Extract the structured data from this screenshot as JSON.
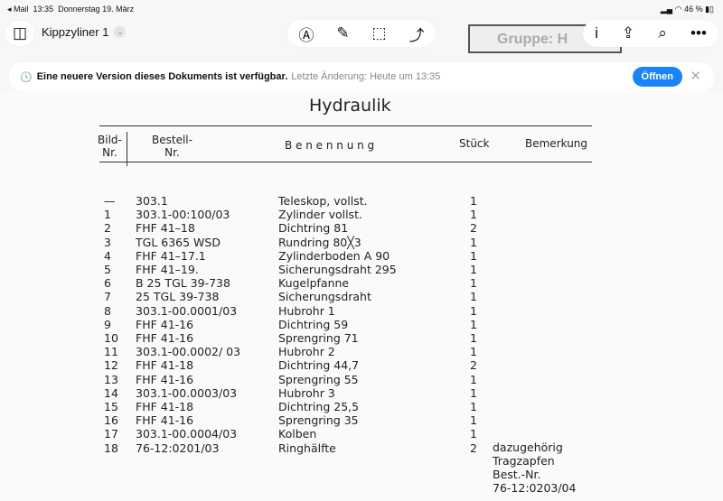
{
  "status": {
    "back": "◂ Mail",
    "time": "13:35",
    "date": "Donnerstag 19. März",
    "battery": "46 %"
  },
  "toolbar": {
    "doc_title": "Kippzyliner 1",
    "stamp": "Gruppe: H"
  },
  "banner": {
    "message": "Eine neuere Version dieses Dokuments ist verfügbar.",
    "detail": "Letzte Änderung: Heute um 13:35",
    "open_label": "Öffnen"
  },
  "document": {
    "title": "Hydraulik",
    "headers": {
      "bild": "Bild-\nNr.",
      "bestell": "Bestell-\nNr.",
      "benennung": "B e n e n n u n g",
      "stueck": "Stück",
      "bemerkung": "Bemerkung"
    },
    "rows": [
      {
        "nr": "—",
        "bestell": "303.1",
        "name": "Teleskop, vollst.",
        "qty": "1"
      },
      {
        "nr": "1",
        "bestell": "303.1-00:100/03",
        "name": "Zylinder vollst.",
        "qty": "1"
      },
      {
        "nr": "2",
        "bestell": "FHF 41–18",
        "name": "Dichtring 81",
        "qty": "2"
      },
      {
        "nr": "3",
        "bestell": "TGL 6365 WSD",
        "name": "Rundring 80╳3",
        "qty": "1"
      },
      {
        "nr": "4",
        "bestell": "FHF 41–17.1",
        "name": "Zylinderboden A 90",
        "qty": "1"
      },
      {
        "nr": "5",
        "bestell": "FHF 41–19.",
        "name": "Sicherungsdraht 295",
        "qty": "1"
      },
      {
        "nr": "6",
        "bestell": "B 25 TGL 39-738",
        "name": "Kugelpfanne",
        "qty": "1"
      },
      {
        "nr": "7",
        "bestell": "25 TGL 39-738",
        "name": "Sicherungsdraht",
        "qty": "1"
      },
      {
        "nr": "8",
        "bestell": "303.1-00.0001/03",
        "name": "Hubrohr 1",
        "qty": "1"
      },
      {
        "nr": "9",
        "bestell": "FHF 41-16",
        "name": "Dichtring 59",
        "qty": "1"
      },
      {
        "nr": "10",
        "bestell": "FHF 41-16",
        "name": "Sprengring 71",
        "qty": "1"
      },
      {
        "nr": "11",
        "bestell": "303.1-00.0002/ 03",
        "name": "Hubrohr 2",
        "qty": "1"
      },
      {
        "nr": "12",
        "bestell": "FHF 41-18",
        "name": "Dichtring 44,7",
        "qty": "2"
      },
      {
        "nr": "13",
        "bestell": "FHF 41-16",
        "name": "Sprengring 55",
        "qty": "1"
      },
      {
        "nr": "14",
        "bestell": "303.1-00.0003/03",
        "name": "Hubrohr 3",
        "qty": "1"
      },
      {
        "nr": "15",
        "bestell": "FHF 41-18",
        "name": "Dichtring 25,5",
        "qty": "1"
      },
      {
        "nr": "16",
        "bestell": "FHF 41-16",
        "name": "Sprengring 35",
        "qty": "1"
      },
      {
        "nr": "17",
        "bestell": "303.1-00.0004/03",
        "name": "Kolben",
        "qty": "1"
      },
      {
        "nr": "18",
        "bestell": "76-12:0201/03",
        "name": "Ringhälfte",
        "qty": "2"
      }
    ],
    "remark": [
      "dazugehörig",
      "Tragzapfen",
      "Best.-Nr.",
      "76-12:0203/04"
    ]
  }
}
